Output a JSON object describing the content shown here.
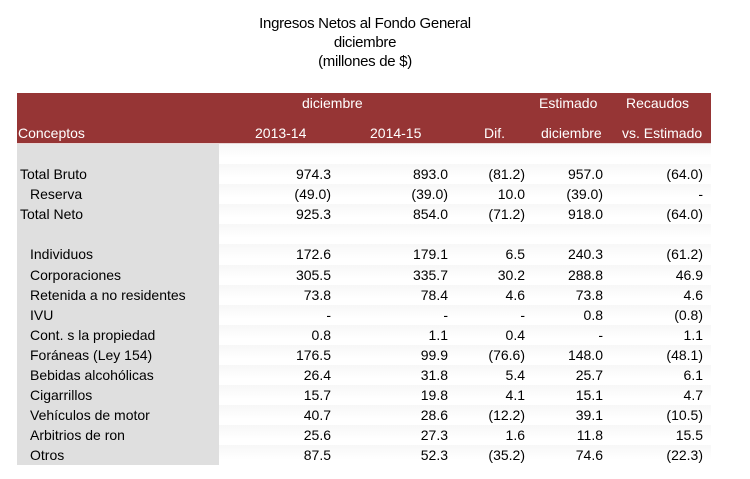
{
  "title": {
    "line1": "Ingresos Netos al Fondo General",
    "line2": "diciembre",
    "line3": "(millones de $)"
  },
  "colors": {
    "header_bg": "#963535",
    "header_text": "#ffffff",
    "label_col_bg": "#dfdfdf"
  },
  "header": {
    "row1": {
      "period": "diciembre",
      "estimado": "Estimado",
      "recaudos": "Recaudos"
    },
    "row2": {
      "conceptos": "Conceptos",
      "y1": "2013-14",
      "y2": "2014-15",
      "dif": "Dif.",
      "estimado_mes": "diciembre",
      "vs_estimado": "vs. Estimado"
    }
  },
  "rows": [
    {
      "label": "",
      "indent": false,
      "values": [
        "",
        "",
        "",
        "",
        ""
      ]
    },
    {
      "label": "Total Bruto",
      "indent": false,
      "values": [
        "974.3",
        "893.0",
        "(81.2)",
        "957.0",
        "(64.0)"
      ]
    },
    {
      "label": "Reserva",
      "indent": true,
      "values": [
        "(49.0)",
        "(39.0)",
        "10.0",
        "(39.0)",
        "-"
      ]
    },
    {
      "label": "Total Neto",
      "indent": false,
      "values": [
        "925.3",
        "854.0",
        "(71.2)",
        "918.0",
        "(64.0)"
      ]
    },
    {
      "label": "",
      "indent": false,
      "values": [
        "",
        "",
        "",
        "",
        ""
      ]
    },
    {
      "label": "Individuos",
      "indent": true,
      "values": [
        "172.6",
        "179.1",
        "6.5",
        "240.3",
        "(61.2)"
      ]
    },
    {
      "label": "Corporaciones",
      "indent": true,
      "values": [
        "305.5",
        "335.7",
        "30.2",
        "288.8",
        "46.9"
      ]
    },
    {
      "label": "Retenida a no residentes",
      "indent": true,
      "values": [
        "73.8",
        "78.4",
        "4.6",
        "73.8",
        "4.6"
      ]
    },
    {
      "label": "IVU",
      "indent": true,
      "values": [
        "-",
        "-",
        "-",
        "0.8",
        "(0.8)"
      ]
    },
    {
      "label": "Cont. s la propiedad",
      "indent": true,
      "values": [
        "0.8",
        "1.1",
        "0.4",
        "-",
        "1.1"
      ]
    },
    {
      "label": "Foráneas (Ley 154)",
      "indent": true,
      "values": [
        "176.5",
        "99.9",
        "(76.6)",
        "148.0",
        "(48.1)"
      ]
    },
    {
      "label": "Bebidas alcohólicas",
      "indent": true,
      "values": [
        "26.4",
        "31.8",
        "5.4",
        "25.7",
        "6.1"
      ]
    },
    {
      "label": "Cigarrillos",
      "indent": true,
      "values": [
        "15.7",
        "19.8",
        "4.1",
        "15.1",
        "4.7"
      ]
    },
    {
      "label": "Vehículos de motor",
      "indent": true,
      "values": [
        "40.7",
        "28.6",
        "(12.2)",
        "39.1",
        "(10.5)"
      ]
    },
    {
      "label": "Arbitrios de ron",
      "indent": true,
      "values": [
        "25.6",
        "27.3",
        "1.6",
        "11.8",
        "15.5"
      ]
    },
    {
      "label": "Otros",
      "indent": true,
      "values": [
        "87.5",
        "52.3",
        "(35.2)",
        "74.6",
        "(22.3)"
      ]
    }
  ]
}
